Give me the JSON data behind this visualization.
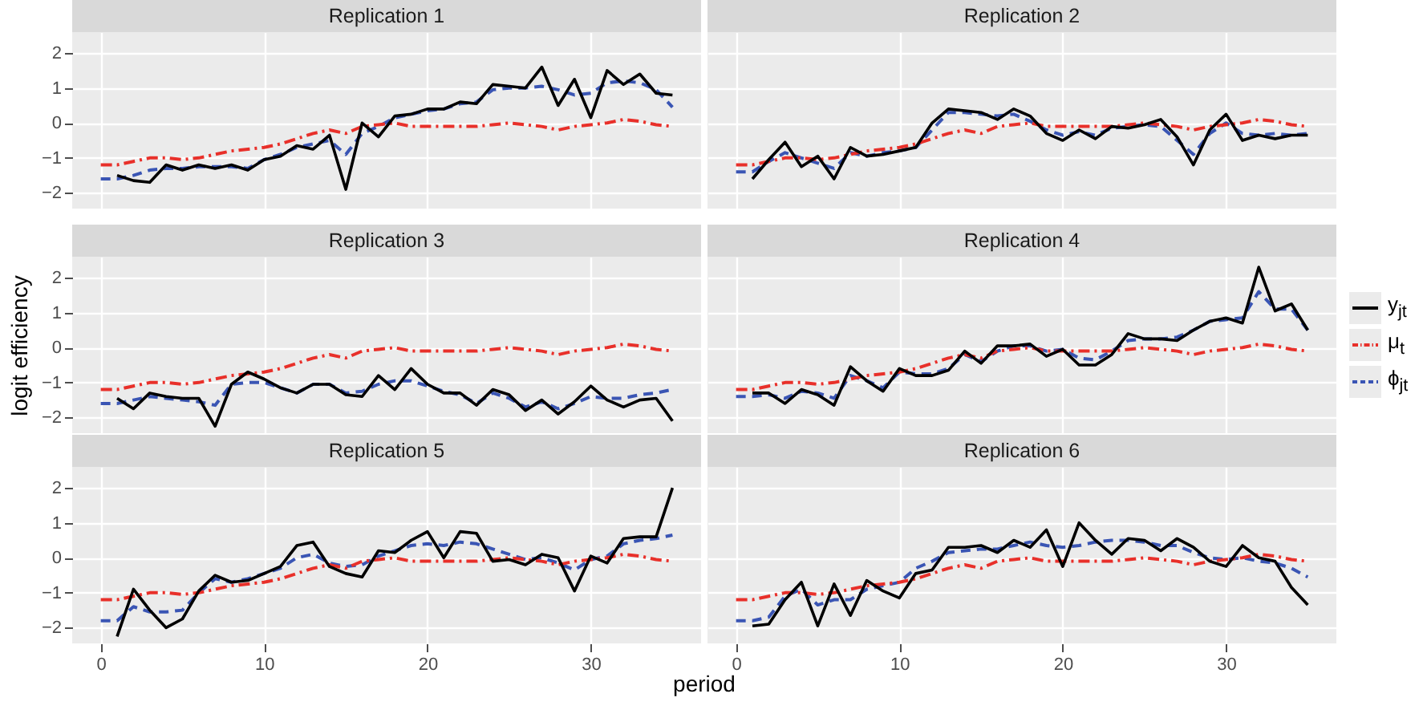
{
  "chart_data": [
    {
      "type": "line",
      "title": "Replication 1",
      "x": [
        0,
        1,
        2,
        3,
        4,
        5,
        6,
        7,
        8,
        9,
        10,
        11,
        12,
        13,
        14,
        15,
        16,
        17,
        18,
        19,
        20,
        21,
        22,
        23,
        24,
        25,
        26,
        27,
        28,
        29,
        30,
        31,
        32,
        33,
        34,
        35
      ],
      "xlim": [
        -1.75,
        36.75
      ],
      "xticks": [
        0,
        10,
        20,
        30
      ],
      "ylim": [
        -2.45,
        2.6
      ],
      "yticks": [
        -2,
        -1,
        0,
        1,
        2
      ],
      "grid": true,
      "tick_labels": "y",
      "series": [
        {
          "color": "#000000",
          "line_style": "solid",
          "x": [
            1,
            2,
            3,
            4,
            5,
            6,
            7,
            8,
            9,
            10,
            11,
            12,
            13,
            14,
            15,
            16,
            17,
            18,
            19,
            20,
            21,
            22,
            23,
            24,
            25,
            26,
            27,
            28,
            29,
            30,
            31,
            32,
            33,
            34,
            35
          ],
          "values": [
            -1.5,
            -1.65,
            -1.7,
            -1.2,
            -1.35,
            -1.2,
            -1.3,
            -1.2,
            -1.35,
            -1.05,
            -0.95,
            -0.65,
            -0.75,
            -0.35,
            -1.9,
            0,
            -0.4,
            0.2,
            0.25,
            0.4,
            0.4,
            0.6,
            0.55,
            1.1,
            1.05,
            1.0,
            1.6,
            0.5,
            1.25,
            0.15,
            1.5,
            1.1,
            1.4,
            0.85,
            0.8
          ]
        },
        {
          "color": "#e8302a",
          "line_style": "dashdot",
          "values": [
            -1.2,
            -1.2,
            -1.1,
            -1.0,
            -1.0,
            -1.05,
            -1.0,
            -0.9,
            -0.8,
            -0.75,
            -0.7,
            -0.6,
            -0.45,
            -0.3,
            -0.2,
            -0.3,
            -0.1,
            -0.05,
            0,
            -0.1,
            -0.1,
            -0.1,
            -0.1,
            -0.1,
            -0.05,
            0,
            -0.05,
            -0.1,
            -0.2,
            -0.1,
            -0.05,
            0,
            0.1,
            0.05,
            -0.05,
            -0.1
          ]
        },
        {
          "color": "#3a55b4",
          "line_style": "dashed",
          "values": [
            -1.6,
            -1.6,
            -1.5,
            -1.35,
            -1.3,
            -1.3,
            -1.25,
            -1.25,
            -1.25,
            -1.3,
            -1.05,
            -0.9,
            -0.7,
            -0.6,
            -0.5,
            -0.9,
            -0.3,
            -0.1,
            0.15,
            0.25,
            0.35,
            0.4,
            0.55,
            0.6,
            0.95,
            1.0,
            1.0,
            1.05,
            0.95,
            0.8,
            0.85,
            1.15,
            1.2,
            1.15,
            0.95,
            0.45
          ]
        }
      ]
    },
    {
      "type": "line",
      "title": "Replication 2",
      "x": [
        0,
        1,
        2,
        3,
        4,
        5,
        6,
        7,
        8,
        9,
        10,
        11,
        12,
        13,
        14,
        15,
        16,
        17,
        18,
        19,
        20,
        21,
        22,
        23,
        24,
        25,
        26,
        27,
        28,
        29,
        30,
        31,
        32,
        33,
        34,
        35
      ],
      "xlim": [
        -1.75,
        36.75
      ],
      "xticks": [
        0,
        10,
        20,
        30
      ],
      "ylim": [
        -2.45,
        2.6
      ],
      "yticks": [
        -2,
        -1,
        0,
        1,
        2
      ],
      "grid": true,
      "tick_labels": false,
      "series": [
        {
          "color": "#000000",
          "line_style": "solid",
          "x": [
            1,
            2,
            3,
            4,
            5,
            6,
            7,
            8,
            9,
            10,
            11,
            12,
            13,
            14,
            15,
            16,
            17,
            18,
            19,
            20,
            21,
            22,
            23,
            24,
            25,
            26,
            27,
            28,
            29,
            30,
            31,
            32,
            33,
            34,
            35
          ],
          "values": [
            -1.6,
            -1.05,
            -0.55,
            -1.25,
            -0.95,
            -1.6,
            -0.7,
            -0.95,
            -0.9,
            -0.8,
            -0.7,
            0,
            0.4,
            0.35,
            0.3,
            0.1,
            0.4,
            0.2,
            -0.3,
            -0.5,
            -0.2,
            -0.45,
            -0.1,
            -0.15,
            -0.05,
            0.1,
            -0.4,
            -1.2,
            -0.2,
            0.25,
            -0.5,
            -0.35,
            -0.45,
            -0.35,
            -0.35
          ]
        },
        {
          "color": "#e8302a",
          "line_style": "dashdot",
          "values": [
            -1.2,
            -1.2,
            -1.1,
            -1.0,
            -1.0,
            -1.05,
            -1.0,
            -0.9,
            -0.8,
            -0.75,
            -0.7,
            -0.6,
            -0.45,
            -0.3,
            -0.2,
            -0.3,
            -0.1,
            -0.05,
            0,
            -0.1,
            -0.1,
            -0.1,
            -0.1,
            -0.1,
            -0.05,
            0,
            -0.05,
            -0.1,
            -0.2,
            -0.1,
            -0.05,
            0,
            0.1,
            0.05,
            -0.05,
            -0.1
          ]
        },
        {
          "color": "#3a55b4",
          "line_style": "dashed",
          "values": [
            -1.4,
            -1.4,
            -1.1,
            -0.85,
            -1.0,
            -1.15,
            -1.3,
            -0.85,
            -0.95,
            -0.85,
            -0.8,
            -0.7,
            -0.2,
            0.3,
            0.3,
            0.25,
            0.2,
            0.25,
            0.05,
            -0.2,
            -0.35,
            -0.25,
            -0.35,
            -0.15,
            -0.1,
            -0.05,
            -0.1,
            -0.5,
            -0.9,
            -0.3,
            0,
            -0.3,
            -0.35,
            -0.3,
            -0.35,
            -0.3
          ]
        }
      ]
    },
    {
      "type": "line",
      "title": "Replication 3",
      "ylabel": "logit efficiency",
      "x": [
        0,
        1,
        2,
        3,
        4,
        5,
        6,
        7,
        8,
        9,
        10,
        11,
        12,
        13,
        14,
        15,
        16,
        17,
        18,
        19,
        20,
        21,
        22,
        23,
        24,
        25,
        26,
        27,
        28,
        29,
        30,
        31,
        32,
        33,
        34,
        35
      ],
      "xlim": [
        -1.75,
        36.75
      ],
      "xticks": [
        0,
        10,
        20,
        30
      ],
      "ylim": [
        -2.45,
        2.6
      ],
      "yticks": [
        -2,
        -1,
        0,
        1,
        2
      ],
      "grid": true,
      "tick_labels": "y",
      "series": [
        {
          "color": "#000000",
          "line_style": "solid",
          "x": [
            1,
            2,
            3,
            4,
            5,
            6,
            7,
            8,
            9,
            10,
            11,
            12,
            13,
            14,
            15,
            16,
            17,
            18,
            19,
            20,
            21,
            22,
            23,
            24,
            25,
            26,
            27,
            28,
            29,
            30,
            31,
            32,
            33,
            34,
            35
          ],
          "values": [
            -1.45,
            -1.75,
            -1.3,
            -1.4,
            -1.45,
            -1.45,
            -2.25,
            -1.05,
            -0.7,
            -0.9,
            -1.15,
            -1.3,
            -1.05,
            -1.05,
            -1.35,
            -1.4,
            -0.8,
            -1.2,
            -0.6,
            -1.05,
            -1.3,
            -1.3,
            -1.65,
            -1.2,
            -1.35,
            -1.8,
            -1.5,
            -1.9,
            -1.55,
            -1.1,
            -1.5,
            -1.7,
            -1.5,
            -1.45,
            -2.1
          ]
        },
        {
          "color": "#e8302a",
          "line_style": "dashdot",
          "values": [
            -1.2,
            -1.2,
            -1.1,
            -1.0,
            -1.0,
            -1.05,
            -1.0,
            -0.9,
            -0.8,
            -0.75,
            -0.7,
            -0.6,
            -0.45,
            -0.3,
            -0.2,
            -0.3,
            -0.1,
            -0.05,
            0,
            -0.1,
            -0.1,
            -0.1,
            -0.1,
            -0.1,
            -0.05,
            0,
            -0.05,
            -0.1,
            -0.2,
            -0.1,
            -0.05,
            0,
            0.1,
            0.05,
            -0.05,
            -0.1
          ]
        },
        {
          "color": "#3a55b4",
          "line_style": "dashed",
          "values": [
            -1.6,
            -1.6,
            -1.5,
            -1.4,
            -1.45,
            -1.5,
            -1.55,
            -1.65,
            -1.05,
            -1.0,
            -1.0,
            -1.15,
            -1.3,
            -1.05,
            -1.05,
            -1.3,
            -1.25,
            -1.05,
            -0.95,
            -0.95,
            -1.1,
            -1.25,
            -1.35,
            -1.6,
            -1.3,
            -1.45,
            -1.7,
            -1.55,
            -1.75,
            -1.6,
            -1.4,
            -1.45,
            -1.45,
            -1.35,
            -1.3,
            -1.2
          ]
        }
      ]
    },
    {
      "type": "line",
      "title": "Replication 4",
      "x": [
        0,
        1,
        2,
        3,
        4,
        5,
        6,
        7,
        8,
        9,
        10,
        11,
        12,
        13,
        14,
        15,
        16,
        17,
        18,
        19,
        20,
        21,
        22,
        23,
        24,
        25,
        26,
        27,
        28,
        29,
        30,
        31,
        32,
        33,
        34,
        35
      ],
      "xlim": [
        -1.75,
        36.75
      ],
      "xticks": [
        0,
        10,
        20,
        30
      ],
      "ylim": [
        -2.45,
        2.6
      ],
      "yticks": [
        -2,
        -1,
        0,
        1,
        2
      ],
      "grid": true,
      "tick_labels": false,
      "legend": "right",
      "series": [
        {
          "name": "y$_{jt}$",
          "color": "#000000",
          "line_style": "solid",
          "x": [
            1,
            2,
            3,
            4,
            5,
            6,
            7,
            8,
            9,
            10,
            11,
            12,
            13,
            14,
            15,
            16,
            17,
            18,
            19,
            20,
            21,
            22,
            23,
            24,
            25,
            26,
            27,
            28,
            29,
            30,
            31,
            32,
            33,
            34,
            35
          ],
          "values": [
            -1.3,
            -1.3,
            -1.6,
            -1.2,
            -1.35,
            -1.65,
            -0.55,
            -0.95,
            -1.25,
            -0.6,
            -0.8,
            -0.8,
            -0.65,
            -0.1,
            -0.45,
            0.05,
            0.05,
            0.1,
            -0.25,
            -0.05,
            -0.5,
            -0.5,
            -0.2,
            0.4,
            0.25,
            0.25,
            0.2,
            0.5,
            0.75,
            0.85,
            0.7,
            2.3,
            1.05,
            1.25,
            0.5
          ]
        },
        {
          "name": "μ$_{t}$",
          "color": "#e8302a",
          "line_style": "dashdot",
          "values": [
            -1.2,
            -1.2,
            -1.1,
            -1.0,
            -1.0,
            -1.05,
            -1.0,
            -0.9,
            -0.8,
            -0.75,
            -0.7,
            -0.6,
            -0.45,
            -0.3,
            -0.2,
            -0.3,
            -0.1,
            -0.05,
            0,
            -0.1,
            -0.1,
            -0.1,
            -0.1,
            -0.1,
            -0.05,
            0,
            -0.05,
            -0.1,
            -0.2,
            -0.1,
            -0.05,
            0,
            0.1,
            0.05,
            -0.05,
            -0.1
          ]
        },
        {
          "name": "ϕ$_{jt}$",
          "color": "#3a55b4",
          "line_style": "dashed",
          "values": [
            -1.4,
            -1.4,
            -1.35,
            -1.45,
            -1.25,
            -1.3,
            -1.45,
            -0.8,
            -0.95,
            -1.15,
            -0.7,
            -0.75,
            -0.75,
            -0.6,
            -0.2,
            -0.4,
            -0.1,
            0.05,
            0.05,
            -0.1,
            -0.05,
            -0.3,
            -0.35,
            -0.1,
            0.2,
            0.25,
            0.25,
            0.3,
            0.5,
            0.75,
            0.8,
            0.85,
            1.6,
            1.1,
            1.1,
            0.5
          ]
        }
      ]
    },
    {
      "type": "line",
      "title": "Replication 5",
      "xlabel": "period",
      "x": [
        0,
        1,
        2,
        3,
        4,
        5,
        6,
        7,
        8,
        9,
        10,
        11,
        12,
        13,
        14,
        15,
        16,
        17,
        18,
        19,
        20,
        21,
        22,
        23,
        24,
        25,
        26,
        27,
        28,
        29,
        30,
        31,
        32,
        33,
        34,
        35
      ],
      "xlim": [
        -1.75,
        36.75
      ],
      "xticks": [
        0,
        10,
        20,
        30
      ],
      "ylim": [
        -2.45,
        2.6
      ],
      "yticks": [
        -2,
        -1,
        0,
        1,
        2
      ],
      "grid": true,
      "series": [
        {
          "color": "#000000",
          "line_style": "solid",
          "x": [
            1,
            2,
            3,
            4,
            5,
            6,
            7,
            8,
            9,
            10,
            11,
            12,
            13,
            14,
            15,
            16,
            17,
            18,
            19,
            20,
            21,
            22,
            23,
            24,
            25,
            26,
            27,
            28,
            29,
            30,
            31,
            32,
            33,
            34,
            35
          ],
          "values": [
            -2.25,
            -0.9,
            -1.5,
            -2.0,
            -1.75,
            -0.95,
            -0.5,
            -0.7,
            -0.65,
            -0.45,
            -0.25,
            0.35,
            0.45,
            -0.25,
            -0.45,
            -0.55,
            0.2,
            0.15,
            0.5,
            0.75,
            0,
            0.75,
            0.7,
            -0.1,
            -0.05,
            -0.2,
            0.1,
            0,
            -0.95,
            0.05,
            -0.15,
            0.55,
            0.6,
            0.6,
            2.0
          ]
        },
        {
          "color": "#e8302a",
          "line_style": "dashdot",
          "values": [
            -1.2,
            -1.2,
            -1.1,
            -1.0,
            -1.0,
            -1.05,
            -1.0,
            -0.9,
            -0.8,
            -0.75,
            -0.7,
            -0.6,
            -0.45,
            -0.3,
            -0.2,
            -0.3,
            -0.1,
            -0.05,
            0,
            -0.1,
            -0.1,
            -0.1,
            -0.1,
            -0.1,
            -0.05,
            0,
            -0.05,
            -0.1,
            -0.2,
            -0.1,
            -0.05,
            0,
            0.1,
            0.05,
            -0.05,
            -0.1
          ]
        },
        {
          "color": "#3a55b4",
          "line_style": "dashed",
          "values": [
            -1.8,
            -1.8,
            -1.4,
            -1.55,
            -1.55,
            -1.5,
            -1.0,
            -0.6,
            -0.7,
            -0.6,
            -0.45,
            -0.3,
            0.0,
            0.1,
            -0.15,
            -0.25,
            -0.2,
            0.05,
            0.2,
            0.35,
            0.4,
            0.35,
            0.45,
            0.4,
            0.25,
            0.1,
            -0.05,
            0.0,
            -0.15,
            -0.35,
            -0.05,
            0.05,
            0.4,
            0.5,
            0.55,
            0.65
          ]
        }
      ]
    },
    {
      "type": "line",
      "title": "Replication 6",
      "x": [
        0,
        1,
        2,
        3,
        4,
        5,
        6,
        7,
        8,
        9,
        10,
        11,
        12,
        13,
        14,
        15,
        16,
        17,
        18,
        19,
        20,
        21,
        22,
        23,
        24,
        25,
        26,
        27,
        28,
        29,
        30,
        31,
        32,
        33,
        34,
        35
      ],
      "xlim": [
        -1.75,
        36.75
      ],
      "xticks": [
        0,
        10,
        20,
        30
      ],
      "ylim": [
        -2.45,
        2.6
      ],
      "yticks": [
        -2,
        -1,
        0,
        1,
        2
      ],
      "grid": true,
      "tick_labels": "x",
      "series": [
        {
          "color": "#000000",
          "line_style": "solid",
          "x": [
            1,
            2,
            3,
            4,
            5,
            6,
            7,
            8,
            9,
            10,
            11,
            12,
            13,
            14,
            15,
            16,
            17,
            18,
            19,
            20,
            21,
            22,
            23,
            24,
            25,
            26,
            27,
            28,
            29,
            30,
            31,
            32,
            33,
            34,
            35
          ],
          "values": [
            -1.95,
            -1.9,
            -1.2,
            -0.7,
            -1.95,
            -0.75,
            -1.65,
            -0.65,
            -0.95,
            -1.15,
            -0.45,
            -0.35,
            0.3,
            0.3,
            0.35,
            0.15,
            0.5,
            0.3,
            0.8,
            -0.25,
            1.0,
            0.5,
            0.1,
            0.55,
            0.5,
            0.2,
            0.55,
            0.3,
            -0.1,
            -0.25,
            0.35,
            0.0,
            -0.1,
            -0.85,
            -1.35
          ]
        },
        {
          "color": "#e8302a",
          "line_style": "dashdot",
          "values": [
            -1.2,
            -1.2,
            -1.1,
            -1.0,
            -1.0,
            -1.05,
            -1.0,
            -0.9,
            -0.8,
            -0.75,
            -0.7,
            -0.6,
            -0.45,
            -0.3,
            -0.2,
            -0.3,
            -0.1,
            -0.05,
            0,
            -0.1,
            -0.1,
            -0.1,
            -0.1,
            -0.1,
            -0.05,
            0,
            -0.05,
            -0.1,
            -0.2,
            -0.1,
            -0.05,
            0,
            0.1,
            0.05,
            -0.05,
            -0.1
          ]
        },
        {
          "color": "#3a55b4",
          "line_style": "dashed",
          "values": [
            -1.8,
            -1.8,
            -1.7,
            -1.1,
            -0.9,
            -1.35,
            -1.2,
            -1.2,
            -0.9,
            -0.8,
            -0.7,
            -0.3,
            -0.1,
            0.15,
            0.2,
            0.25,
            0.25,
            0.35,
            0.45,
            0.35,
            0.3,
            0.35,
            0.45,
            0.5,
            0.5,
            0.45,
            0.35,
            0.35,
            0.15,
            0.0,
            -0.05,
            0.0,
            -0.1,
            -0.15,
            -0.3,
            -0.55
          ]
        }
      ]
    }
  ]
}
